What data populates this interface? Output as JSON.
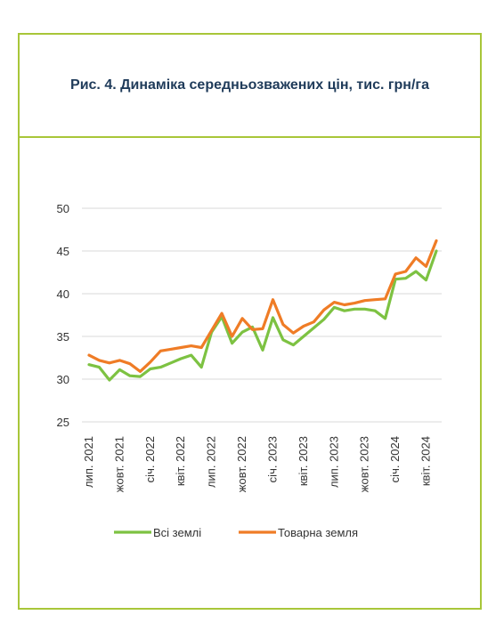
{
  "chart_data": {
    "type": "line",
    "title": "Рис. 4. Динаміка середньозважених цін, тис. грн/га",
    "xlabel": "",
    "ylabel": "",
    "ylim": [
      25,
      50
    ],
    "yticks": [
      25,
      30,
      35,
      40,
      45,
      50
    ],
    "grid": true,
    "legend_position": "bottom",
    "x_tick_labels": [
      "лип. 2021",
      "жовт. 2021",
      "січ. 2022",
      "квіт. 2022",
      "лип. 2022",
      "жовт. 2022",
      "січ. 2023",
      "квіт. 2023",
      "лип. 2023",
      "жовт. 2023",
      "січ. 2024",
      "квіт. 2024"
    ],
    "x": [
      "2021-07",
      "2021-08",
      "2021-09",
      "2021-10",
      "2021-11",
      "2021-12",
      "2022-01",
      "2022-02",
      "2022-03",
      "2022-04",
      "2022-05",
      "2022-06",
      "2022-07",
      "2022-08",
      "2022-09",
      "2022-10",
      "2022-11",
      "2022-12",
      "2023-01",
      "2023-02",
      "2023-03",
      "2023-04",
      "2023-05",
      "2023-06",
      "2023-07",
      "2023-08",
      "2023-09",
      "2023-10",
      "2023-11",
      "2023-12",
      "2024-01",
      "2024-02",
      "2024-03",
      "2024-04",
      "2024-05"
    ],
    "series": [
      {
        "name": "Всі землі",
        "color": "#7dc242",
        "values": [
          31.7,
          31.4,
          29.9,
          31.1,
          30.4,
          30.3,
          31.2,
          31.4,
          31.9,
          32.4,
          32.8,
          31.4,
          35.5,
          37.3,
          34.2,
          35.5,
          36.1,
          33.4,
          37.2,
          34.6,
          34.0,
          35.0,
          36.0,
          37.0,
          38.4,
          38.0,
          38.2,
          38.2,
          38.0,
          37.1,
          41.7,
          41.8,
          42.6,
          41.6,
          45.0
        ]
      },
      {
        "name": "Товарна земля",
        "color": "#ef7c26",
        "values": [
          32.8,
          32.2,
          31.9,
          32.2,
          31.8,
          30.9,
          32.0,
          33.3,
          33.5,
          33.7,
          33.9,
          33.7,
          35.7,
          37.7,
          35.0,
          37.1,
          35.8,
          35.9,
          39.3,
          36.4,
          35.4,
          36.2,
          36.7,
          38.1,
          39.0,
          38.7,
          38.9,
          39.2,
          39.3,
          39.4,
          42.3,
          42.6,
          44.2,
          43.2,
          46.2
        ]
      }
    ]
  }
}
